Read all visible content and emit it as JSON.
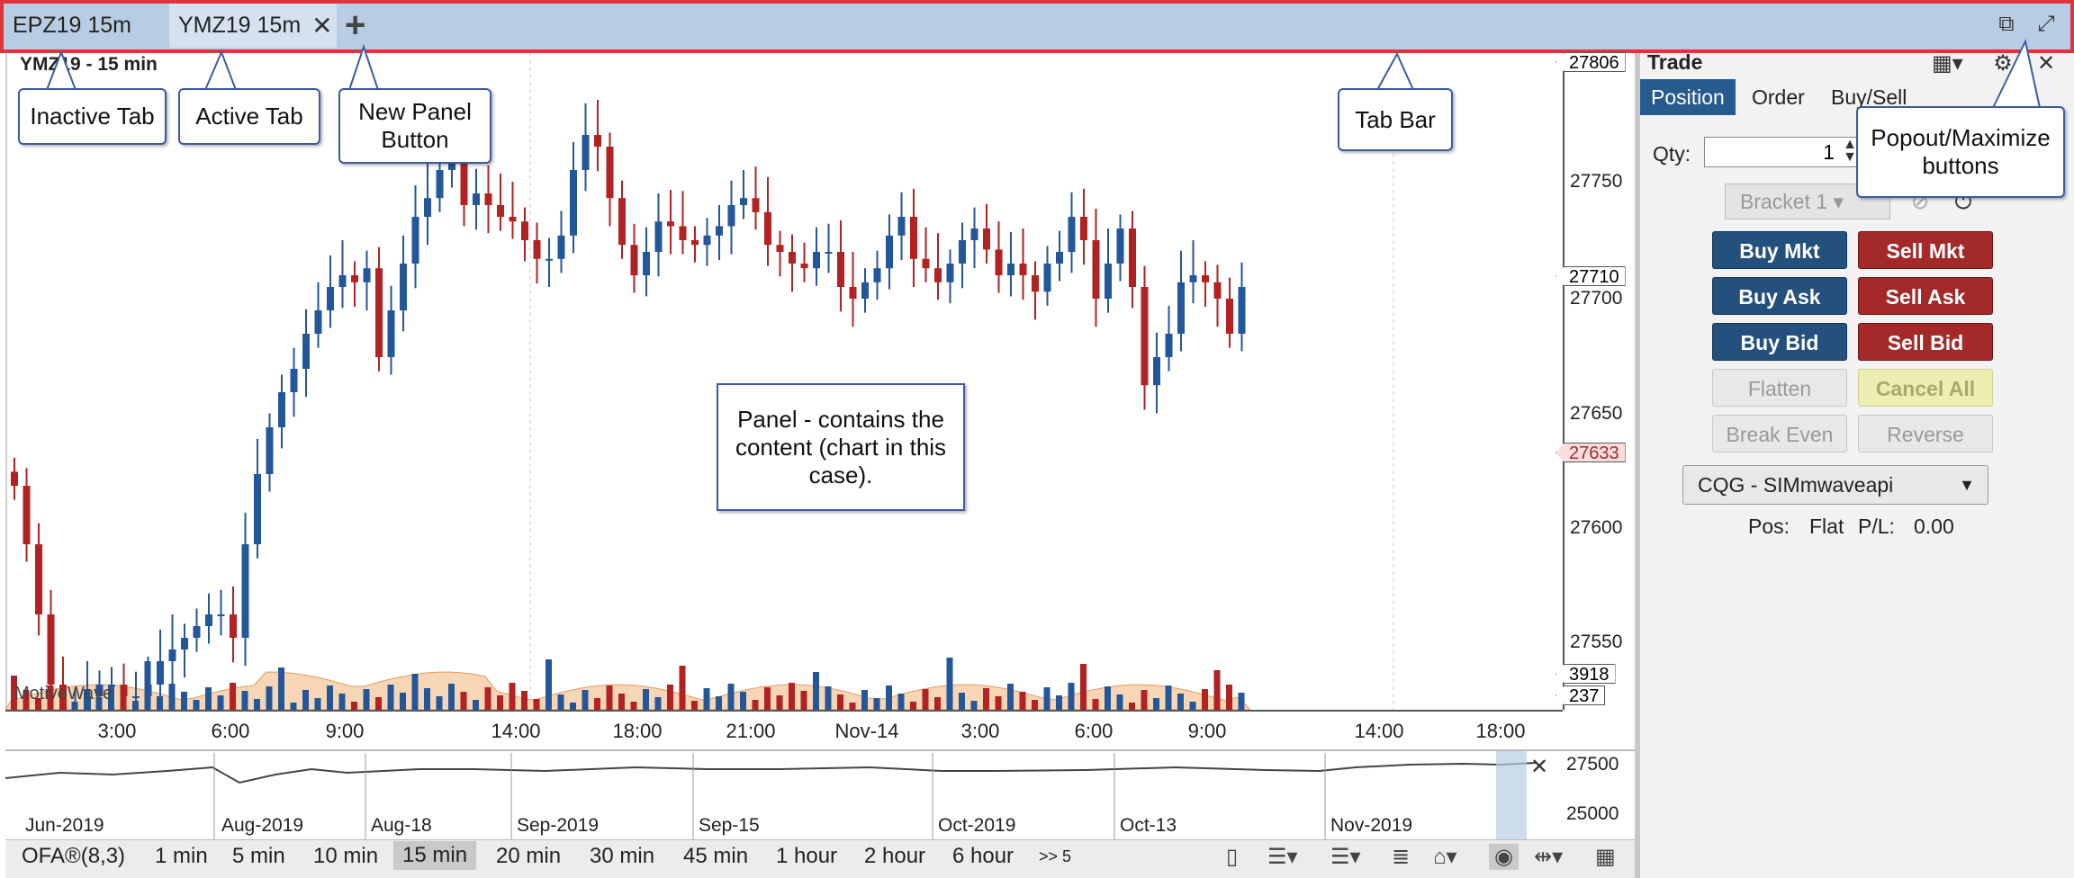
{
  "tabs": {
    "inactive": "EPZ19 15m",
    "active": "YMZ19 15m",
    "new_panel": "+"
  },
  "chart": {
    "title": "YMZ19 - 15 min",
    "brand": "MotiveWave",
    "price_labels": [
      "27750",
      "27700",
      "27650",
      "27600",
      "27550"
    ],
    "price_tags": {
      "top": "27806",
      "last": "27710",
      "low": "27633",
      "vol1": "3918",
      "vol2": "237"
    },
    "time_labels": [
      "3:00",
      "6:00",
      "9:00",
      "14:00",
      "18:00",
      "21:00",
      "Nov-14",
      "3:00",
      "6:00",
      "9:00",
      "14:00",
      "18:00"
    ]
  },
  "chart_data": {
    "type": "candlestick",
    "title": "YMZ19 - 15 min",
    "ylim": [
      27530,
      27810
    ],
    "y_ticks": [
      27550,
      27600,
      27650,
      27700,
      27750
    ],
    "closes": [
      27625,
      27600,
      27570,
      27540,
      27520,
      27525,
      27535,
      27540,
      27540,
      27535,
      27535,
      27540,
      27550,
      27555,
      27560,
      27565,
      27570,
      27570,
      27560,
      27600,
      27630,
      27650,
      27665,
      27675,
      27690,
      27700,
      27710,
      27715,
      27712,
      27718,
      27680,
      27700,
      27720,
      27740,
      27748,
      27760,
      27765,
      27745,
      27750,
      27745,
      27740,
      27738,
      27730,
      27722,
      27722,
      27732,
      27760,
      27775,
      27770,
      27748,
      27728,
      27715,
      27725,
      27738,
      27736,
      27730,
      27728,
      27732,
      27736,
      27745,
      27748,
      27742,
      27728,
      27725,
      27720,
      27718,
      27725,
      27725,
      27710,
      27705,
      27712,
      27718,
      27732,
      27740,
      27722,
      27718,
      27712,
      27720,
      27730,
      27735,
      27726,
      27715,
      27720,
      27715,
      27708,
      27720,
      27725,
      27740,
      27730,
      27705,
      27720,
      27735,
      27710,
      27668,
      27680,
      27690,
      27712,
      27715,
      27712,
      27705,
      27690,
      27710
    ],
    "volume_overview": {
      "x_labels": [
        "Jun-2019",
        "Aug-2019",
        "Aug-18",
        "Sep-2019",
        "Sep-15",
        "Oct-2019",
        "Oct-13",
        "Nov-2019"
      ],
      "y_labels": [
        "27500",
        "25000"
      ]
    }
  },
  "overview": {
    "labels": [
      "Jun-2019",
      "Aug-2019",
      "Aug-18",
      "Sep-2019",
      "Sep-15",
      "Oct-2019",
      "Oct-13",
      "Nov-2019"
    ],
    "prices": [
      "27500",
      "25000"
    ]
  },
  "toolbar": {
    "study": "OFA®(8,3)",
    "intervals": [
      "1 min",
      "5 min",
      "10 min",
      "15 min",
      "20 min",
      "30 min",
      "45 min",
      "1 hour",
      "2 hour",
      "6 hour"
    ],
    "more": ">> 5"
  },
  "trade": {
    "title": "Trade",
    "tabs": [
      "Position",
      "Order",
      "Buy/Sell"
    ],
    "qty_label": "Qty:",
    "qty_value": "1",
    "bracket": "Bracket 1",
    "buy_mkt": "Buy Mkt",
    "sell_mkt": "Sell Mkt",
    "buy_ask": "Buy Ask",
    "sell_ask": "Sell Ask",
    "buy_bid": "Buy Bid",
    "sell_bid": "Sell Bid",
    "flatten": "Flatten",
    "cancel_all": "Cancel All",
    "break_even": "Break Even",
    "reverse": "Reverse",
    "account": "CQG - SIMmwaveapi",
    "pos_label": "Pos:",
    "pos_value": "Flat",
    "pl_label": "P/L:",
    "pl_value": "0.00"
  },
  "callouts": {
    "inactive_tab": "Inactive Tab",
    "active_tab": "Active Tab",
    "new_panel": "New Panel Button",
    "tab_bar": "Tab Bar",
    "popout": "Popout/Maximize buttons",
    "panel": "Panel - contains the content (chart in this case)."
  },
  "colors": {
    "up": "#24569a",
    "down": "#b22222",
    "tabbar": "#b8cde3",
    "highlight": "#e0343a"
  }
}
